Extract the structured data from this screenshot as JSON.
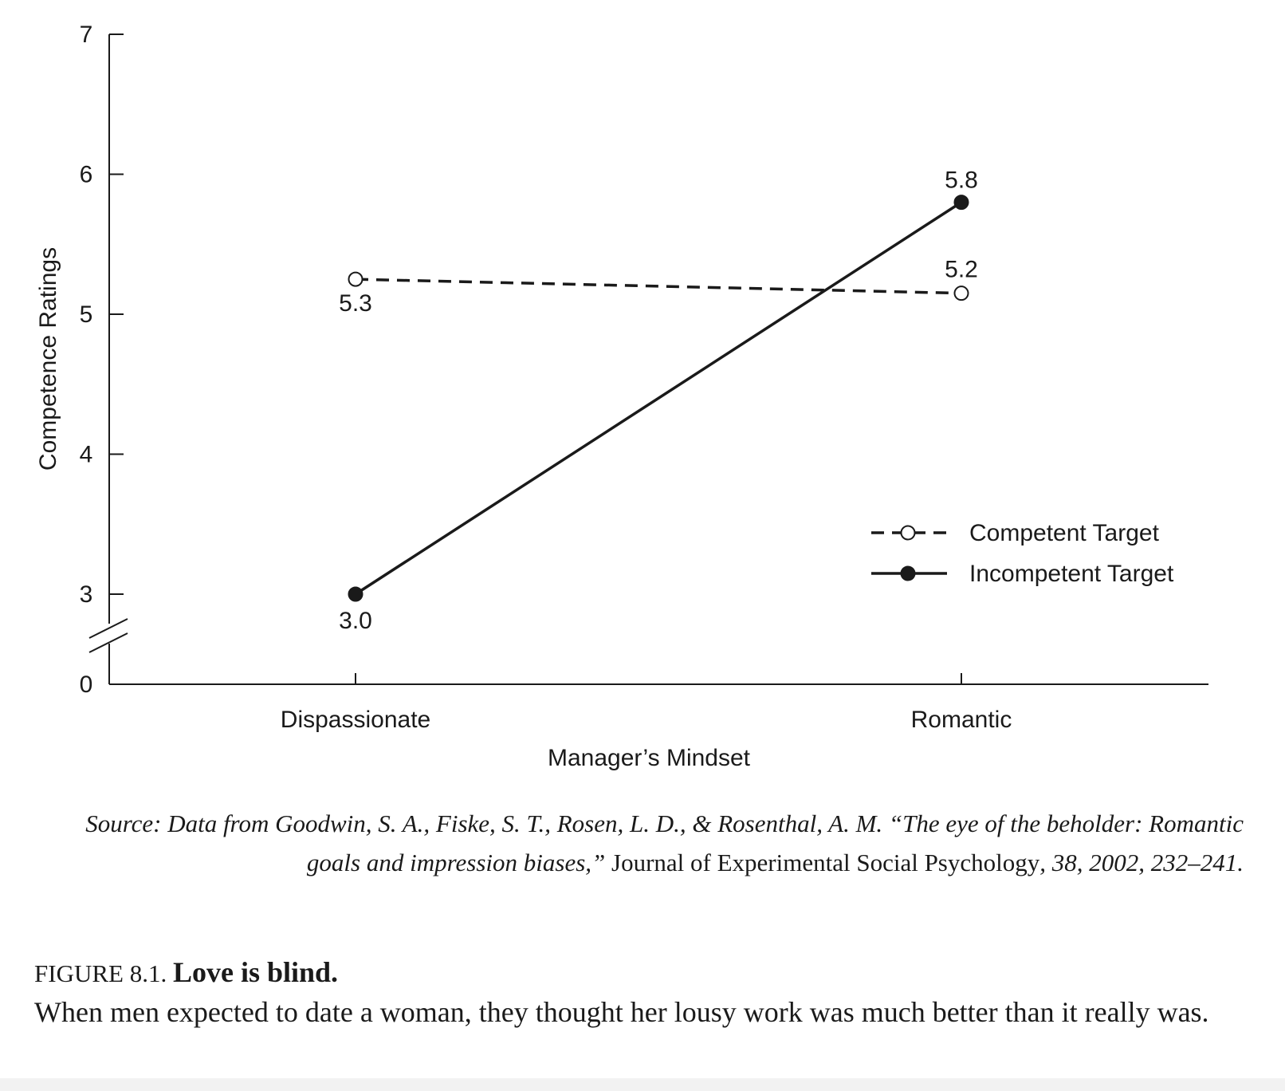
{
  "chart_data": {
    "type": "line",
    "title": "",
    "xlabel": "Manager’s Mindset",
    "ylabel": "Competence Ratings",
    "categories": [
      "Dispassionate",
      "Romantic"
    ],
    "ylim": [
      0,
      7
    ],
    "y_ticks": [
      7,
      6,
      5,
      4,
      3,
      0
    ],
    "y_axis_break": [
      0,
      3
    ],
    "legend_position": "lower-right",
    "grid": false,
    "series": [
      {
        "name": "Competent Target",
        "style": "dashed",
        "marker": "open-circle",
        "values": [
          5.25,
          5.15
        ],
        "labels": [
          "5.3",
          "5.2"
        ]
      },
      {
        "name": "Incompetent Target",
        "style": "solid",
        "marker": "filled-circle",
        "values": [
          3.0,
          5.8
        ],
        "labels": [
          "3.0",
          "5.8"
        ]
      }
    ]
  },
  "source": {
    "prefix": "Source: Data from Goodwin, S. A., Fiske, S. T., Rosen, L. D., & Rosenthal, A. M. “The eye of the beholder: Romantic goals and impression biases,”",
    "journal": "Journal of Experimental Social Psychology",
    "details": ", 38, 2002, 232–241."
  },
  "caption": {
    "figure_number": "FIGURE 8.1.",
    "title": "Love is blind.",
    "text": "When men expected to date a woman, they thought her lousy work was much better than it really was."
  },
  "colors": {
    "ink": "#1a1a1a",
    "background": "#ffffff"
  }
}
